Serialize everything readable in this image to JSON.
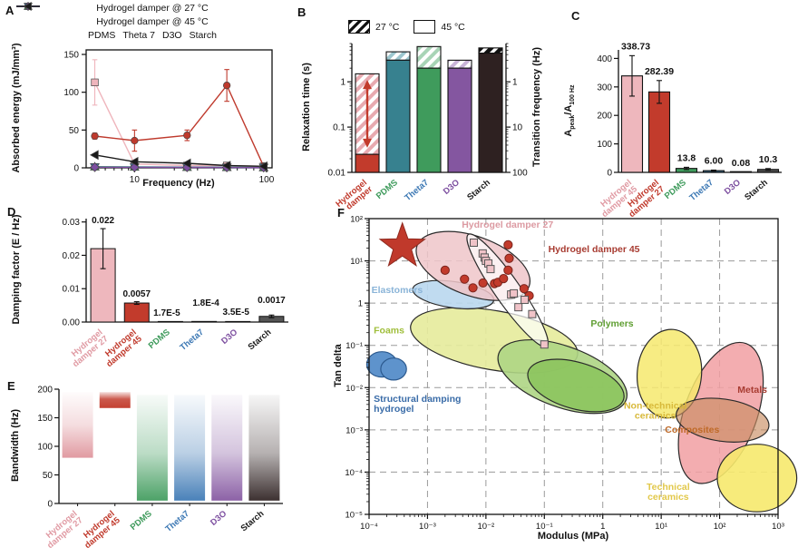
{
  "figure": {
    "background": "#ffffff"
  },
  "panels": {
    "A": {
      "label": "A",
      "xlabel": "Frequency (Hz)",
      "ylabel": "Absorbed energy (mJ/mm³)"
    },
    "B": {
      "label": "B",
      "ylabel_left": "Relaxation time (s)",
      "ylabel_right": "Transition frequency (Hz)",
      "legend": [
        {
          "label": "27 °C",
          "style": "hatch"
        },
        {
          "label": "45 °C",
          "style": "open"
        }
      ]
    },
    "C": {
      "label": "C",
      "ylabel_parts": [
        {
          "t": "A"
        },
        {
          "t": "peak",
          "s": "sub"
        },
        {
          "t": "/A"
        },
        {
          "t": "100 Hz",
          "s": "sub"
        }
      ]
    },
    "D": {
      "label": "D",
      "ylabel": "Damping factor (E / Hz)"
    },
    "E": {
      "label": "E",
      "ylabel": "Bandwidth (Hz)"
    },
    "F": {
      "label": "F",
      "xlabel": "Modulus (MPa)",
      "ylabel": "Tan delta"
    }
  },
  "chart_data": [
    {
      "panel": "A",
      "type": "line",
      "xscale": "log",
      "xlabel": "Frequency (Hz)",
      "ylabel": "Absorbed energy (mJ/mm³)",
      "xlim": [
        4.3,
        110
      ],
      "ylim": [
        0,
        150
      ],
      "yticks": [
        0,
        50,
        100,
        150
      ],
      "xticks": [
        10,
        100
      ],
      "xtick_labels": [
        "10",
        "100"
      ],
      "x": [
        5,
        10,
        25,
        50,
        95
      ],
      "series": [
        {
          "name": "Hydrogel damper @ 27 °C",
          "color": "#efb5bc",
          "marker": "square",
          "values": [
            113,
            5,
            3,
            3,
            2
          ],
          "errors": [
            30,
            2,
            1,
            1,
            1
          ]
        },
        {
          "name": "Hydrogel damper @ 45 °C",
          "color": "#bf3a2d",
          "marker": "circle",
          "values": [
            42,
            36,
            43,
            109,
            2
          ],
          "errors": [
            4,
            14,
            7,
            21,
            1
          ]
        },
        {
          "name": "PDMS",
          "color": "#3f9b5c",
          "marker": "triangle-up",
          "values": [
            1.5,
            1.2,
            1.0,
            0.8,
            0.5
          ],
          "errors": [
            0,
            0,
            0,
            0,
            0
          ]
        },
        {
          "name": "Theta 7",
          "color": "#3c78b4",
          "marker": "triangle-down",
          "values": [
            1.0,
            0.9,
            0.8,
            0.6,
            0.4
          ],
          "errors": [
            0,
            0,
            0,
            0,
            0
          ]
        },
        {
          "name": "D3O",
          "color": "#7d4fa0",
          "marker": "diamond",
          "values": [
            0.8,
            0.7,
            0.6,
            0.5,
            0.3
          ],
          "errors": [
            0,
            0,
            0,
            0,
            0
          ]
        },
        {
          "name": "Starch",
          "color": "#1a1a1a",
          "marker": "triangle-left",
          "values": [
            17,
            8,
            6,
            3,
            2
          ],
          "errors": [
            1,
            1,
            1,
            0.5,
            0.5
          ]
        }
      ]
    },
    {
      "panel": "B",
      "type": "stacked-bar-log",
      "ylabel_left": "Relaxation time (s)",
      "ylabel_right": "Transition frequency (Hz)",
      "ylim": [
        0.01,
        7
      ],
      "yticks_left": [
        {
          "v": 1,
          "l": "1"
        },
        {
          "v": 0.1,
          "l": "0.1"
        },
        {
          "v": 0.01,
          "l": "0.01"
        }
      ],
      "yticks_right": [
        {
          "v": 1,
          "l": "1"
        },
        {
          "v": 0.1,
          "l": "10"
        },
        {
          "v": 0.01,
          "l": "100"
        }
      ],
      "categories": [
        {
          "label": "Hydrogel\ndamper",
          "color": "#c0392b"
        },
        {
          "label": "PDMS",
          "color": "#3f9b5c"
        },
        {
          "label": "Theta7",
          "color": "#3c78b4"
        },
        {
          "label": "D3O",
          "color": "#7d4fa0"
        },
        {
          "label": "Starch",
          "color": "#1a1a1a"
        }
      ],
      "bars": [
        {
          "solid_top": 0.025,
          "cap_top": 1.5,
          "color": "#c23b2c",
          "cap": "pink",
          "arrow": [
            0.035,
            1.1
          ]
        },
        {
          "solid_top": 3.0,
          "cap_top": 4.6,
          "color": "#37818f",
          "cap": "teal"
        },
        {
          "solid_top": 2.0,
          "cap_top": 6.0,
          "color": "#3f9b5c",
          "cap": "green"
        },
        {
          "solid_top": 2.0,
          "cap_top": 3.0,
          "color": "#8456a0",
          "cap": "purple"
        },
        {
          "solid_top": 4.3,
          "cap_top": 5.6,
          "color": "#2e2121",
          "cap": "dark"
        }
      ]
    },
    {
      "panel": "C",
      "type": "bar",
      "ylim": [
        0,
        430
      ],
      "yticks": [
        0,
        100,
        200,
        300,
        400
      ],
      "categories": [
        {
          "label": "Hydrogel\ndamper 45",
          "color": "#e09aa3"
        },
        {
          "label": "Hydrogel\ndamper 27",
          "color": "#c0392b"
        },
        {
          "label": "PDMS",
          "color": "#3f9b5c"
        },
        {
          "label": "Theta7",
          "color": "#3c78b4"
        },
        {
          "label": "D3O",
          "color": "#7d4fa0"
        },
        {
          "label": "Starch",
          "color": "#1a1a1a"
        }
      ],
      "values": [
        338.73,
        282.39,
        13.8,
        6.0,
        0.08,
        10.3
      ],
      "value_labels": [
        "338.73",
        "282.39",
        "13.8",
        "6.00",
        "0.08",
        "10.3"
      ],
      "errors": [
        71,
        40,
        4,
        2,
        0,
        3
      ],
      "colors": [
        "#eeb7bd",
        "#c23b2c",
        "#3f9b5c",
        "#376e8f",
        "#c23b2c",
        "#4d4d4d"
      ]
    },
    {
      "panel": "D",
      "type": "bar",
      "ylim": [
        0,
        0.031
      ],
      "yticks": [
        0,
        0.01,
        0.02,
        0.03
      ],
      "ytick_labels": [
        "0.00",
        "0.01",
        "0.02",
        "0.03"
      ],
      "categories": [
        {
          "label": "Hydrogel\ndamper 27",
          "color": "#e09aa3"
        },
        {
          "label": "Hydrogel\ndamper 45",
          "color": "#c0392b"
        },
        {
          "label": "PDMS",
          "color": "#3f9b5c"
        },
        {
          "label": "Theta7",
          "color": "#3c78b4"
        },
        {
          "label": "D3O",
          "color": "#7d4fa0"
        },
        {
          "label": "Starch",
          "color": "#1a1a1a"
        }
      ],
      "values": [
        0.022,
        0.0057,
        1.7e-05,
        0.00018,
        3.5e-05,
        0.0017
      ],
      "value_labels": [
        "0.022",
        "0.0057",
        "1.7E-5",
        "1.8E-4",
        "3.5E-5",
        "0.0017"
      ],
      "errors": [
        0.006,
        0.0004,
        0,
        0,
        0,
        0.0004
      ],
      "colors": [
        "#eeb7bd",
        "#c23b2c",
        "#3f9b5c",
        "#376e8f",
        "#7d4fa0",
        "#555555"
      ]
    },
    {
      "panel": "E",
      "type": "range-bar",
      "ylim": [
        0,
        200
      ],
      "yticks": [
        0,
        50,
        100,
        150,
        200
      ],
      "categories": [
        {
          "label": "Hydrogel\ndamper 27",
          "color": "#e09aa3"
        },
        {
          "label": "Hydrogel\ndamper 45",
          "color": "#c0392b"
        },
        {
          "label": "PDMS",
          "color": "#3f9b5c"
        },
        {
          "label": "Theta7",
          "color": "#3c78b4"
        },
        {
          "label": "D3O",
          "color": "#7d4fa0"
        },
        {
          "label": "Starch",
          "color": "#1a1a1a"
        }
      ],
      "bars": [
        {
          "from": 80,
          "to": 195,
          "color": "#dd8f97",
          "profile": "fade-mid"
        },
        {
          "from": 167,
          "to": 195,
          "color": "#c23b2c",
          "profile": "solid-band"
        },
        {
          "from": 5,
          "to": 190,
          "color": "#3f9b5c",
          "profile": "fade-tall"
        },
        {
          "from": 5,
          "to": 190,
          "color": "#3c78b4",
          "profile": "fade-tall"
        },
        {
          "from": 5,
          "to": 190,
          "color": "#8456a0",
          "profile": "fade-tall"
        },
        {
          "from": 5,
          "to": 190,
          "color": "#2e2121",
          "profile": "fade-tall"
        }
      ]
    },
    {
      "panel": "F",
      "type": "ashby-scatter",
      "xscale": "log",
      "yscale": "log",
      "xlabel": "Modulus (MPa)",
      "ylabel": "Tan delta",
      "xlim_exp": [
        -4,
        3
      ],
      "ylim_exp": [
        -5,
        2
      ],
      "xtick_labels": [
        "10⁻⁴",
        "10⁻³",
        "10⁻²",
        "10⁻¹",
        "1",
        "10¹",
        "10²",
        "10³"
      ],
      "ytick_labels": [
        "10²",
        "10¹",
        "1",
        "10⁻¹",
        "10⁻²",
        "10⁻³",
        "10⁻⁴",
        "10⁻⁵"
      ],
      "star": {
        "x_exp": -3.43,
        "y_exp": 1.34,
        "color": "#c0392b"
      },
      "regions": [
        {
          "name": "foams",
          "cx": -1.86,
          "cy": -0.88,
          "rx": 1.45,
          "ry": 0.7,
          "rot": 10,
          "fill": "#e6eb9b",
          "opacity": 0.9
        },
        {
          "name": "elastomers",
          "cx": -2.56,
          "cy": 0.2,
          "rx": 0.7,
          "ry": 0.31,
          "rot": 8,
          "fill": "#b9d7ee",
          "opacity": 0.9
        },
        {
          "name": "polymers-outer",
          "cx": -0.69,
          "cy": -1.74,
          "rx": 1.16,
          "ry": 0.72,
          "rot": 20,
          "fill": "#aed584",
          "opacity": 0.9
        },
        {
          "name": "polymers-inner",
          "cx": -0.46,
          "cy": -1.95,
          "rx": 0.85,
          "ry": 0.55,
          "rot": 16,
          "fill": "#8cc45e",
          "opacity": 0.9
        },
        {
          "name": "metals",
          "cx": 2.02,
          "cy": -2.6,
          "rx": 0.62,
          "ry": 1.75,
          "rot": 20,
          "fill": "#f19fa2",
          "opacity": 0.85
        },
        {
          "name": "non-technical-ceramics",
          "cx": 1.14,
          "cy": -1.67,
          "rx": 0.55,
          "ry": 1.05,
          "rot": 5,
          "fill": "#f6e96d",
          "opacity": 0.85
        },
        {
          "name": "composites",
          "cx": 2.05,
          "cy": -2.77,
          "rx": 0.8,
          "ry": 0.5,
          "rot": 8,
          "fill": "#c98d62",
          "opacity": 0.65
        },
        {
          "name": "technical-ceramics",
          "cx": 2.64,
          "cy": -4.14,
          "rx": 0.68,
          "ry": 0.8,
          "rot": 0,
          "fill": "#f6e96d",
          "opacity": 0.9
        },
        {
          "name": "structural-damping-hydrogel-a",
          "cx": -3.78,
          "cy": -1.45,
          "rx": 0.26,
          "ry": 0.3,
          "rot": 0,
          "fill": "#5e93cc",
          "opacity": 1,
          "stroke": "#2c5a8f"
        },
        {
          "name": "structural-damping-hydrogel-b",
          "cx": -3.58,
          "cy": -1.56,
          "rx": 0.22,
          "ry": 0.26,
          "rot": 0,
          "fill": "#5e93cc",
          "opacity": 1,
          "stroke": "#2c5a8f"
        },
        {
          "name": "hydrogel-damper-45-region",
          "cx": -2.22,
          "cy": 0.88,
          "rx": 1.02,
          "ry": 0.7,
          "rot": 20,
          "fill": "#eec6c9",
          "opacity": 0.85
        },
        {
          "name": "hydrogel-damper-27-region",
          "cx": -1.63,
          "cy": 0.3,
          "rx": 1.17,
          "ry": 0.3,
          "rot": 55,
          "fill": "#ffffff",
          "opacity": 0.7
        }
      ],
      "series": [
        {
          "name": "Hydrogel damper 45",
          "marker": "circle",
          "color": "#c23b2c",
          "points": [
            [
              0.002,
              6
            ],
            [
              0.0043,
              3.7
            ],
            [
              0.006,
              2.3
            ],
            [
              0.0089,
              3.0
            ],
            [
              0.014,
              2.9
            ],
            [
              0.016,
              3.1
            ],
            [
              0.02,
              3.8
            ],
            [
              0.024,
              24
            ],
            [
              0.025,
              11.5
            ],
            [
              0.024,
              6
            ],
            [
              0.045,
              2.2
            ],
            [
              0.055,
              1.5
            ]
          ]
        },
        {
          "name": "Hydrogel damper 27",
          "marker": "square",
          "color": "#f0c3c8",
          "points": [
            [
              0.0062,
              27
            ],
            [
              0.0088,
              15
            ],
            [
              0.0095,
              12
            ],
            [
              0.01,
              10
            ],
            [
              0.011,
              8.7
            ],
            [
              0.012,
              6.4
            ],
            [
              0.027,
              1.6
            ],
            [
              0.03,
              1.7
            ],
            [
              0.036,
              0.8
            ],
            [
              0.046,
              1.2
            ],
            [
              0.062,
              0.55
            ],
            [
              0.1,
              0.105
            ]
          ]
        }
      ],
      "labels": [
        {
          "text": "Hydrogel damper 27",
          "color": "#dc9aa2",
          "x": -1.63,
          "y": 1.78,
          "anchor": "middle"
        },
        {
          "text": "Hydrogel damper 45",
          "color": "#a83c32",
          "x": -0.15,
          "y": 1.21,
          "anchor": "middle"
        },
        {
          "text": "Elastomers",
          "color": "#8ab4d8",
          "x": -3.96,
          "y": 0.24,
          "anchor": "start"
        },
        {
          "text": "Foams",
          "color": "#9fbe3a",
          "x": -3.92,
          "y": -0.72,
          "anchor": "start"
        },
        {
          "text": "Polymers",
          "color": "#5f9e32",
          "x": 0.16,
          "y": -0.56,
          "anchor": "middle"
        },
        {
          "text": "Metals",
          "color": "#a83c32",
          "x": 2.56,
          "y": -2.12,
          "anchor": "middle"
        },
        {
          "text": "Non-technical\nceramics",
          "color": "#d8b93a",
          "x": 0.9,
          "y": -2.5,
          "anchor": "middle"
        },
        {
          "text": "Composites",
          "color": "#bf6a28",
          "x": 1.53,
          "y": -3.07,
          "anchor": "middle"
        },
        {
          "text": "Technical\nceramics",
          "color": "#e2c84a",
          "x": 1.12,
          "y": -4.42,
          "anchor": "middle"
        },
        {
          "text": "Structural damping\nhydrogel",
          "color": "#3a6ca8",
          "x": -3.92,
          "y": -2.34,
          "anchor": "start"
        }
      ]
    }
  ]
}
